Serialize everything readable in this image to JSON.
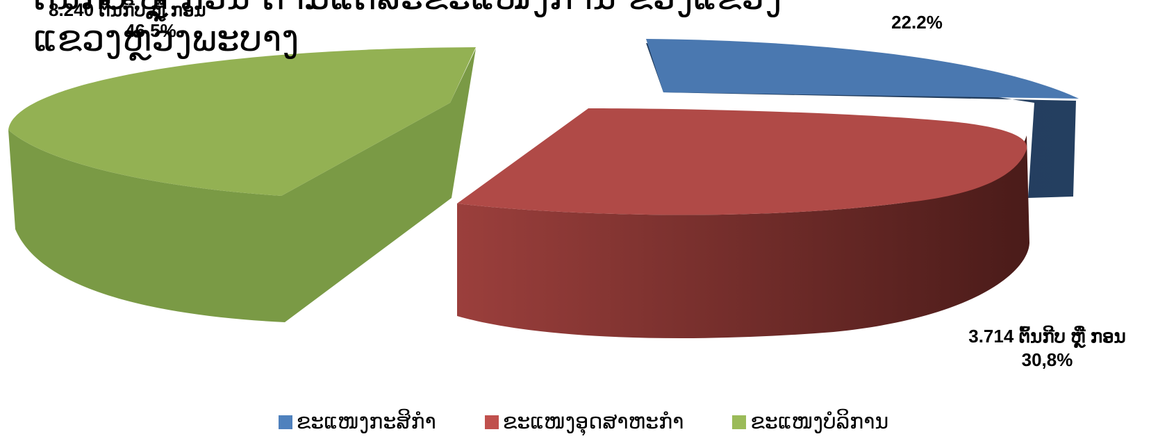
{
  "chart_data": {
    "type": "pie",
    "title_lines": [
      "ຕົ້ນກີບ ຫຼື ກອນ ຕາມແຕ່ລະຂະແໜງການ ຂອງແຂວງ",
      "ແຂວງຫຼວງພະບາງ"
    ],
    "categories": [
      "ຂະແໜງກະສິກຳ",
      "ຂະແໜງອຸດສາຫະກຳ",
      "ຂະແໜງບໍລິການ"
    ],
    "values": [
      22.2,
      30.8,
      46.5
    ],
    "colors": [
      "#4F81BD",
      "#C0504D",
      "#9BBB59"
    ],
    "side_colors": [
      "#243F60",
      "#5C1F1D",
      "#76923C"
    ],
    "data_labels": [
      {
        "lines": [
          "22.2%"
        ]
      },
      {
        "lines": [
          "3.714 ຕົ້ນກີບ ຫຼື ກອນ",
          "30,8%"
        ]
      },
      {
        "lines": [
          "8.240 ຕົ້ນກີບ ຫຼື ກອນ",
          "46.5%"
        ]
      }
    ],
    "legend_position": "bottom",
    "exploded": true,
    "style": "3d"
  }
}
